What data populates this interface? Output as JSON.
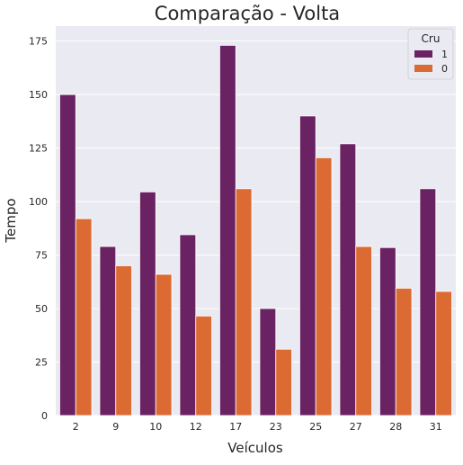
{
  "chart_data": {
    "type": "bar",
    "title": "Comparação - Volta",
    "xlabel": "Veículos",
    "ylabel": "Tempo",
    "categories": [
      "2",
      "9",
      "10",
      "12",
      "17",
      "23",
      "25",
      "27",
      "28",
      "31"
    ],
    "series": [
      {
        "name": "1",
        "color": "#6b2263",
        "values": [
          150,
          79,
          104.5,
          84.5,
          173,
          50,
          140,
          127,
          78.5,
          106
        ]
      },
      {
        "name": "0",
        "color": "#dc6b33",
        "values": [
          92,
          70,
          66,
          46.5,
          106,
          31,
          120.5,
          79,
          59.5,
          58
        ]
      }
    ],
    "ylim": [
      0,
      182
    ],
    "yticks": [
      0,
      25,
      50,
      75,
      100,
      125,
      150,
      175
    ],
    "legend": {
      "title": "Cru",
      "placement": "top-right"
    },
    "grid": true,
    "background_color": "#eaeaf2",
    "grid_color": "#ffffff"
  }
}
